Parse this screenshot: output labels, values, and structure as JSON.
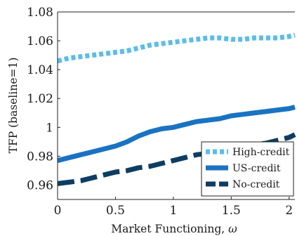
{
  "chart_data": {
    "type": "line",
    "xlabel_text": "Market Functioning, ",
    "xlabel_symbol": "ω",
    "ylabel": "TFP (baseline=1)",
    "xlim": [
      0,
      2.05
    ],
    "ylim": [
      0.95,
      1.08
    ],
    "x_ticks": [
      0,
      0.5,
      1,
      1.5,
      2
    ],
    "x_tick_labels": [
      "0",
      "0.5",
      "1",
      "1.5",
      "2"
    ],
    "y_ticks": [
      0.96,
      0.98,
      1.0,
      1.02,
      1.04,
      1.06,
      1.08
    ],
    "y_tick_labels": [
      "0.96",
      "0.98",
      "1",
      "1.02",
      "1.04",
      "1.06",
      "1.08"
    ],
    "grid": false,
    "legend_position": "bottom-right",
    "series": [
      {
        "name": "High-credit",
        "color": "#5bbde8",
        "style": "dotted",
        "x": [
          0,
          0.1,
          0.2,
          0.3,
          0.4,
          0.5,
          0.6,
          0.7,
          0.8,
          0.9,
          1.0,
          1.1,
          1.2,
          1.3,
          1.4,
          1.5,
          1.6,
          1.7,
          1.8,
          1.9,
          2.0,
          2.05
        ],
        "y": [
          1.046,
          1.048,
          1.049,
          1.05,
          1.051,
          1.052,
          1.053,
          1.055,
          1.057,
          1.058,
          1.059,
          1.06,
          1.061,
          1.062,
          1.062,
          1.061,
          1.061,
          1.062,
          1.062,
          1.062,
          1.063,
          1.064
        ]
      },
      {
        "name": "US-credit",
        "color": "#1a73c2",
        "style": "solid",
        "x": [
          0,
          0.1,
          0.2,
          0.3,
          0.4,
          0.5,
          0.6,
          0.7,
          0.8,
          0.9,
          1.0,
          1.1,
          1.2,
          1.3,
          1.4,
          1.5,
          1.6,
          1.7,
          1.8,
          1.9,
          2.0,
          2.05
        ],
        "y": [
          0.977,
          0.979,
          0.981,
          0.983,
          0.985,
          0.987,
          0.99,
          0.994,
          0.997,
          0.999,
          1.0,
          1.002,
          1.004,
          1.005,
          1.006,
          1.008,
          1.009,
          1.01,
          1.011,
          1.012,
          1.013,
          1.014
        ]
      },
      {
        "name": "No-credit",
        "color": "#0e3d62",
        "style": "dashed",
        "x": [
          0,
          0.1,
          0.2,
          0.3,
          0.4,
          0.5,
          0.6,
          0.7,
          0.8,
          0.9,
          1.0,
          1.1,
          1.2,
          1.3,
          1.4,
          1.5,
          1.6,
          1.7,
          1.8,
          1.9,
          2.0,
          2.05
        ],
        "y": [
          0.961,
          0.962,
          0.963,
          0.965,
          0.967,
          0.969,
          0.97,
          0.972,
          0.973,
          0.975,
          0.977,
          0.979,
          0.981,
          0.982,
          0.983,
          0.985,
          0.987,
          0.988,
          0.989,
          0.991,
          0.993,
          0.995
        ]
      }
    ]
  }
}
